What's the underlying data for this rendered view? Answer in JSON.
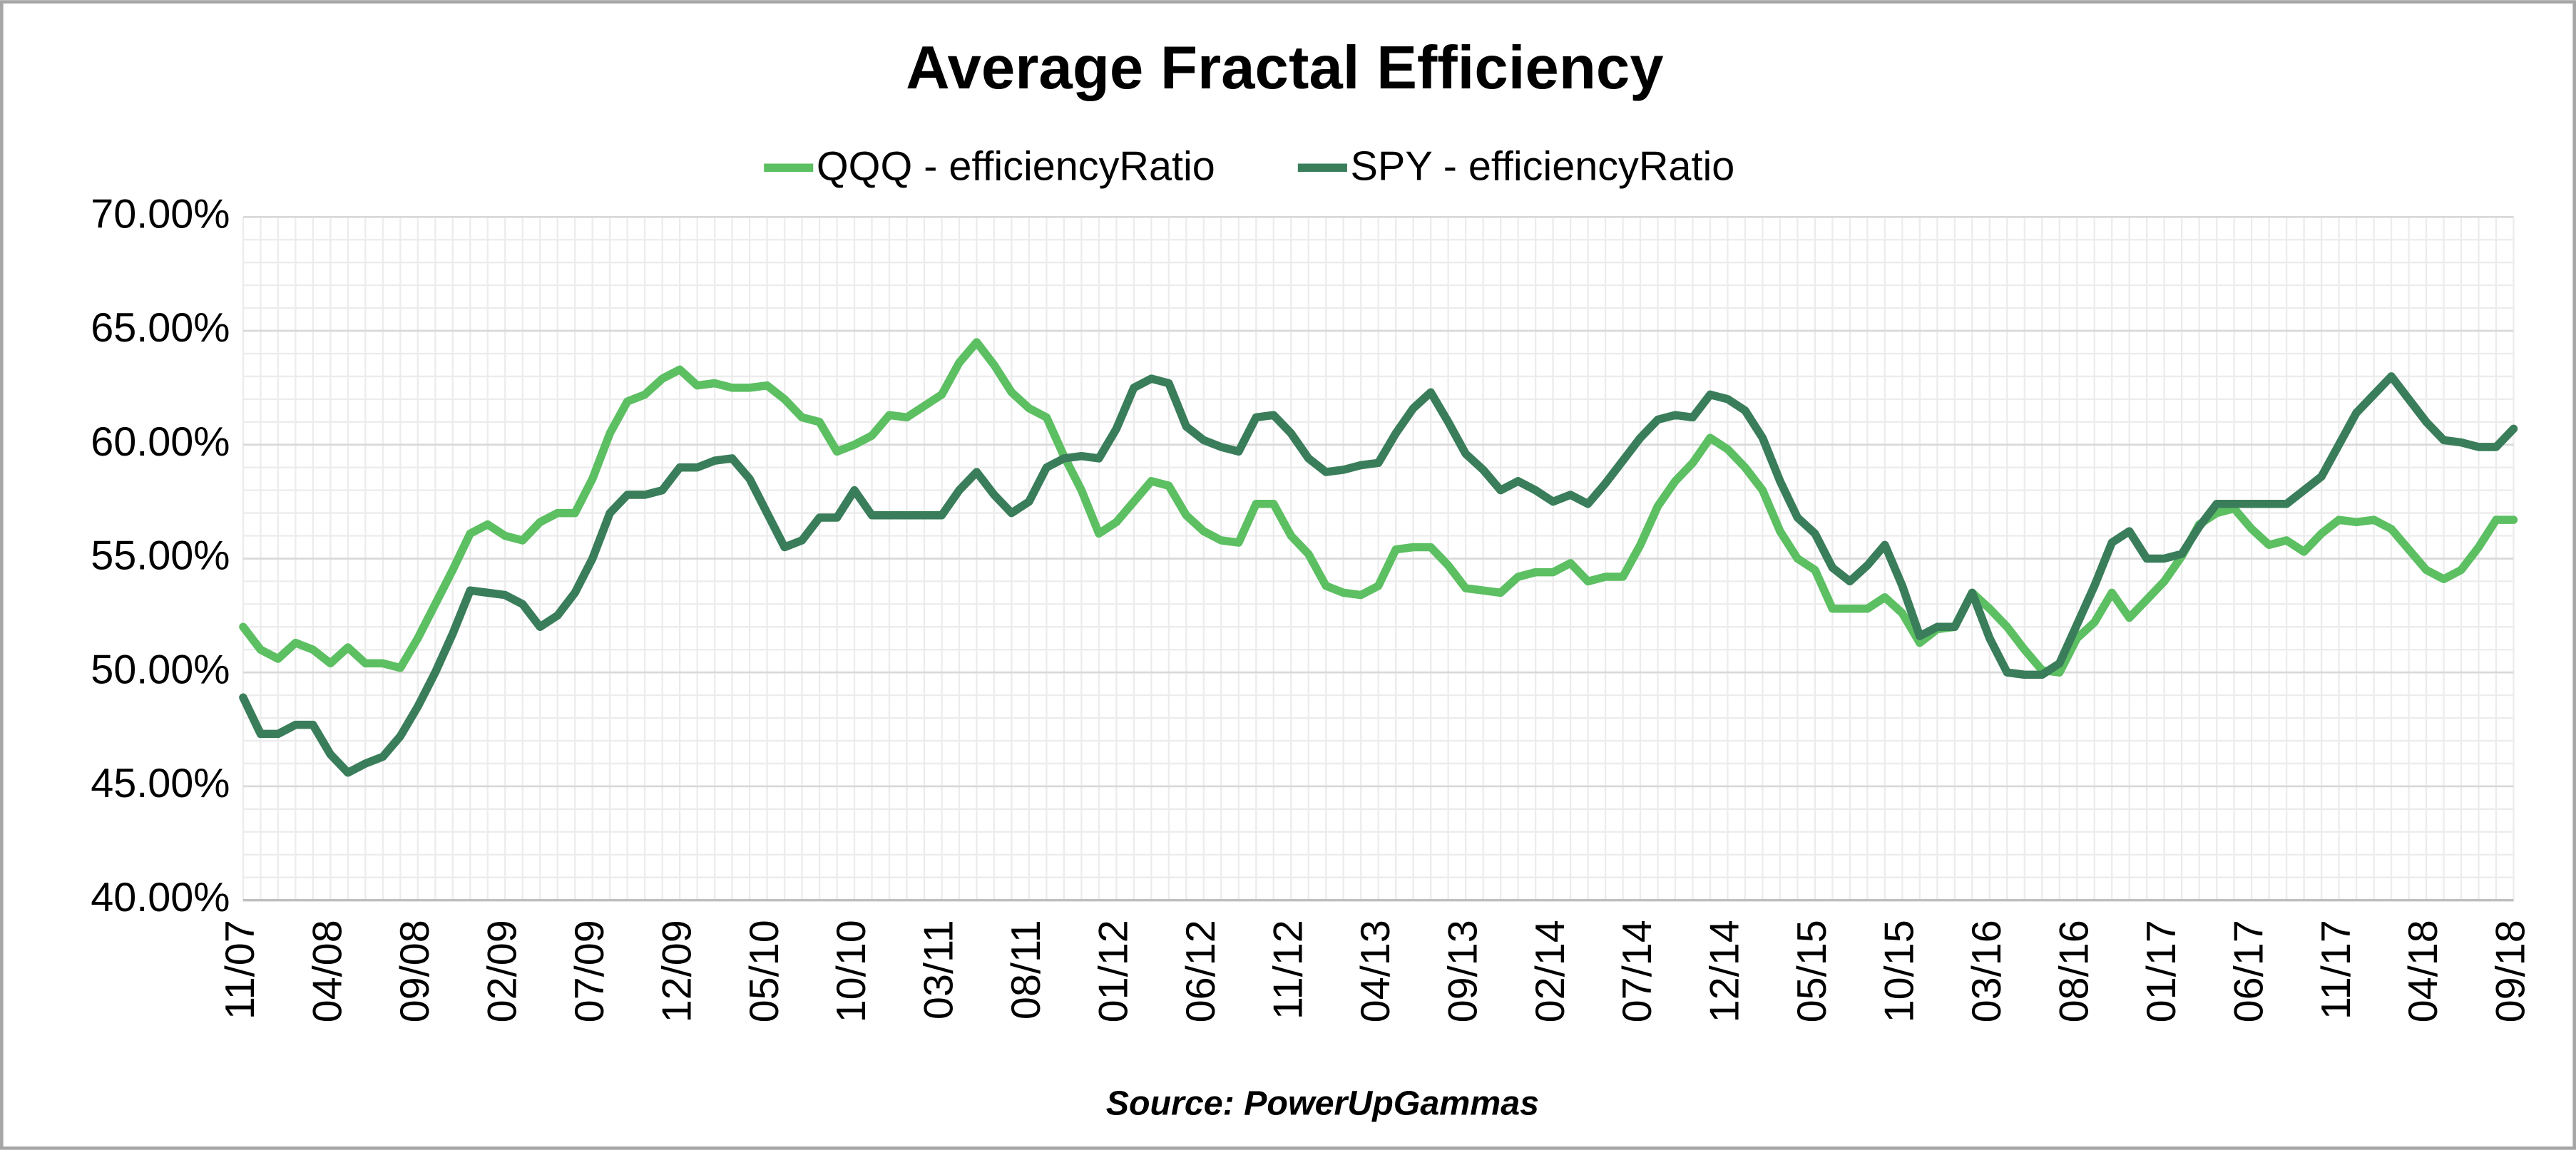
{
  "chart_data": {
    "type": "line",
    "title": "Average Fractal Efficiency",
    "source": "Source: PowerUpGammas",
    "categories": [
      "11/07",
      null,
      null,
      null,
      null,
      "04/08",
      null,
      null,
      null,
      null,
      "09/08",
      null,
      null,
      null,
      null,
      "02/09",
      null,
      null,
      null,
      null,
      "07/09",
      null,
      null,
      null,
      null,
      "12/09",
      null,
      null,
      null,
      null,
      "05/10",
      null,
      null,
      null,
      null,
      "10/10",
      null,
      null,
      null,
      null,
      "03/11",
      null,
      null,
      null,
      null,
      "08/11",
      null,
      null,
      null,
      null,
      "01/12",
      null,
      null,
      null,
      null,
      "06/12",
      null,
      null,
      null,
      null,
      "11/12",
      null,
      null,
      null,
      null,
      "04/13",
      null,
      null,
      null,
      null,
      "09/13",
      null,
      null,
      null,
      null,
      "02/14",
      null,
      null,
      null,
      null,
      "07/14",
      null,
      null,
      null,
      null,
      "12/14",
      null,
      null,
      null,
      null,
      "05/15",
      null,
      null,
      null,
      null,
      "10/15",
      null,
      null,
      null,
      null,
      "03/16",
      null,
      null,
      null,
      null,
      "08/16",
      null,
      null,
      null,
      null,
      "01/17",
      null,
      null,
      null,
      null,
      "06/17",
      null,
      null,
      null,
      null,
      "11/17",
      null,
      null,
      null,
      null,
      "04/18",
      null,
      null,
      null,
      null,
      "09/18"
    ],
    "series": [
      {
        "name": "QQQ - efficiencyRatio",
        "color": "#5cbf62",
        "values": [
          52.0,
          51.0,
          50.6,
          51.3,
          51.0,
          50.4,
          51.1,
          50.4,
          50.4,
          50.2,
          51.5,
          53.0,
          54.5,
          56.1,
          56.5,
          56.0,
          55.8,
          56.6,
          57.0,
          57.0,
          58.5,
          60.5,
          61.9,
          62.2,
          62.9,
          63.3,
          62.6,
          62.7,
          62.5,
          62.5,
          62.6,
          62.0,
          61.2,
          61.0,
          59.7,
          60.0,
          60.4,
          61.3,
          61.2,
          61.7,
          62.2,
          63.6,
          64.5,
          63.5,
          62.3,
          61.6,
          61.2,
          59.5,
          58.0,
          56.1,
          56.6,
          57.5,
          58.4,
          58.2,
          56.9,
          56.2,
          55.8,
          55.7,
          57.4,
          57.4,
          56.0,
          55.2,
          53.8,
          53.5,
          53.4,
          53.8,
          55.4,
          55.5,
          55.5,
          54.7,
          53.7,
          53.6,
          53.5,
          54.2,
          54.4,
          54.4,
          54.8,
          54.0,
          54.2,
          54.2,
          55.6,
          57.3,
          58.4,
          59.2,
          60.3,
          59.8,
          59.0,
          58.0,
          56.2,
          55.0,
          54.5,
          52.8,
          52.8,
          52.8,
          53.3,
          52.6,
          51.3,
          51.9,
          52.0,
          53.5,
          52.8,
          52.0,
          51.0,
          50.1,
          50.0,
          51.5,
          52.2,
          53.5,
          52.4,
          53.2,
          54.0,
          55.1,
          56.5,
          57.0,
          57.2,
          56.3,
          55.6,
          55.8,
          55.3,
          56.1,
          56.7,
          56.6,
          56.7,
          56.3,
          55.4,
          54.5,
          54.1,
          54.5,
          55.5,
          56.7,
          56.7
        ]
      },
      {
        "name": "SPY - efficiencyRatio",
        "color": "#3a7d5a",
        "values": [
          48.9,
          47.3,
          47.3,
          47.7,
          47.7,
          46.4,
          45.6,
          46.0,
          46.3,
          47.2,
          48.5,
          50.0,
          51.7,
          53.6,
          53.5,
          53.4,
          53.0,
          52.0,
          52.5,
          53.5,
          55.0,
          57.0,
          57.8,
          57.8,
          58.0,
          59.0,
          59.0,
          59.3,
          59.4,
          58.5,
          57.0,
          55.5,
          55.8,
          56.8,
          56.8,
          58.0,
          56.9,
          56.9,
          56.9,
          56.9,
          56.9,
          58.0,
          58.8,
          57.8,
          57.0,
          57.5,
          59.0,
          59.4,
          59.5,
          59.4,
          60.7,
          62.5,
          62.9,
          62.7,
          60.8,
          60.2,
          59.9,
          59.7,
          61.2,
          61.3,
          60.5,
          59.4,
          58.8,
          58.9,
          59.1,
          59.2,
          60.5,
          61.6,
          62.3,
          61.0,
          59.6,
          58.9,
          58.0,
          58.4,
          58.0,
          57.5,
          57.8,
          57.4,
          58.3,
          59.3,
          60.3,
          61.1,
          61.3,
          61.2,
          62.2,
          62.0,
          61.5,
          60.3,
          58.4,
          56.8,
          56.1,
          54.6,
          54.0,
          54.7,
          55.6,
          53.8,
          51.6,
          52.0,
          52.0,
          53.5,
          51.5,
          50.0,
          49.9,
          49.9,
          50.4,
          52.1,
          53.8,
          55.7,
          56.2,
          55.0,
          55.0,
          55.2,
          56.4,
          57.4,
          57.4,
          57.4,
          57.4,
          57.4,
          58.0,
          58.6,
          60.0,
          61.4,
          62.2,
          63.0,
          62.0,
          61.0,
          60.2,
          60.1,
          59.9,
          59.9,
          60.7
        ]
      }
    ],
    "ylim": [
      40,
      70
    ],
    "yticks": [
      {
        "value": 40,
        "label": "40.00%"
      },
      {
        "value": 45,
        "label": "45.00%"
      },
      {
        "value": 50,
        "label": "50.00%"
      },
      {
        "value": 55,
        "label": "55.00%"
      },
      {
        "value": 60,
        "label": "60.00%"
      },
      {
        "value": 65,
        "label": "65.00%"
      },
      {
        "value": 70,
        "label": "70.00%"
      }
    ],
    "grid": true,
    "minor_grid": true,
    "legend": "top"
  }
}
